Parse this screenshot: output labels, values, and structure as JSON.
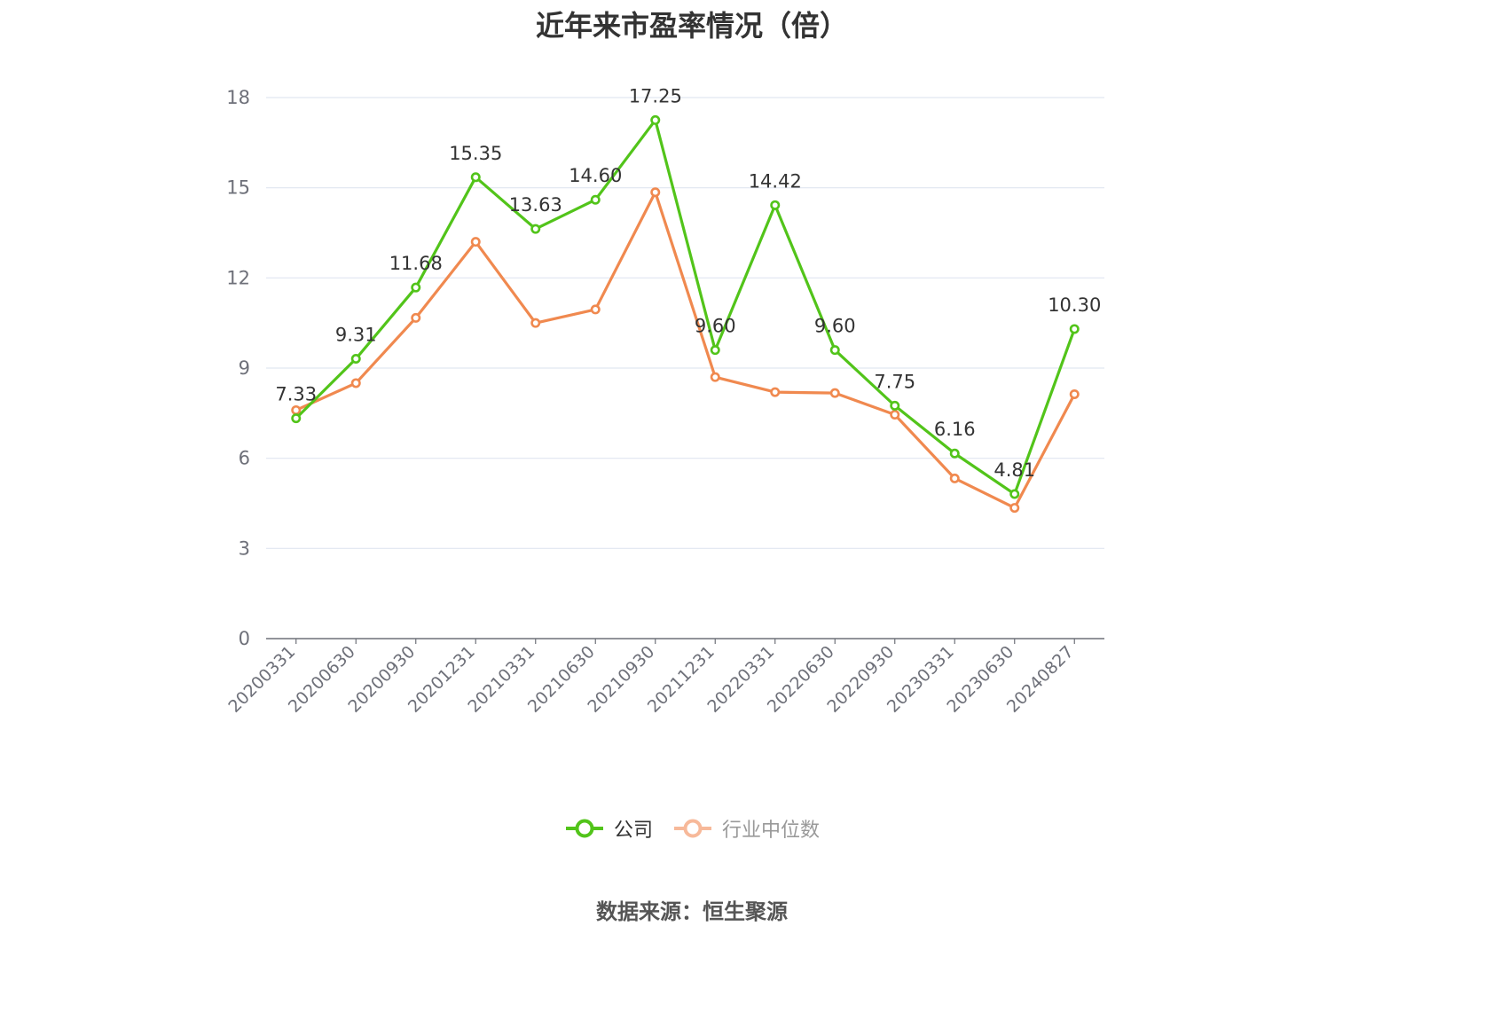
{
  "chart_data": {
    "type": "line",
    "title": "近年来市盈率情况（倍）",
    "categories": [
      "20200331",
      "20200630",
      "20200930",
      "20201231",
      "20210331",
      "20210630",
      "20210930",
      "20211231",
      "20220331",
      "20220630",
      "20220930",
      "20230331",
      "20230630",
      "20240827"
    ],
    "series": [
      {
        "name": "公司",
        "color": "#52c41a",
        "values": [
          7.33,
          9.31,
          11.68,
          15.35,
          13.63,
          14.6,
          17.25,
          9.6,
          14.42,
          9.6,
          7.75,
          6.16,
          4.81,
          10.3
        ],
        "labels": [
          "7.33",
          "9.31",
          "11.68",
          "15.35",
          "13.63",
          "14.60",
          "17.25",
          "9.60",
          "14.42",
          "9.60",
          "7.75",
          "6.16",
          "4.81",
          "10.30"
        ]
      },
      {
        "name": "行业中位数",
        "color": "#f0894f",
        "legend_color": "#f7b99a",
        "values": [
          7.6,
          8.5,
          10.67,
          13.2,
          10.5,
          10.95,
          14.85,
          8.7,
          8.2,
          8.17,
          7.45,
          5.33,
          4.35,
          8.13
        ]
      }
    ],
    "y_ticks": [
      "0",
      "3",
      "6",
      "9",
      "12",
      "15",
      "18"
    ],
    "ylim": [
      0,
      18
    ],
    "grid": true,
    "legend_position": "bottom-center"
  },
  "source_text": "数据来源：恒生聚源"
}
